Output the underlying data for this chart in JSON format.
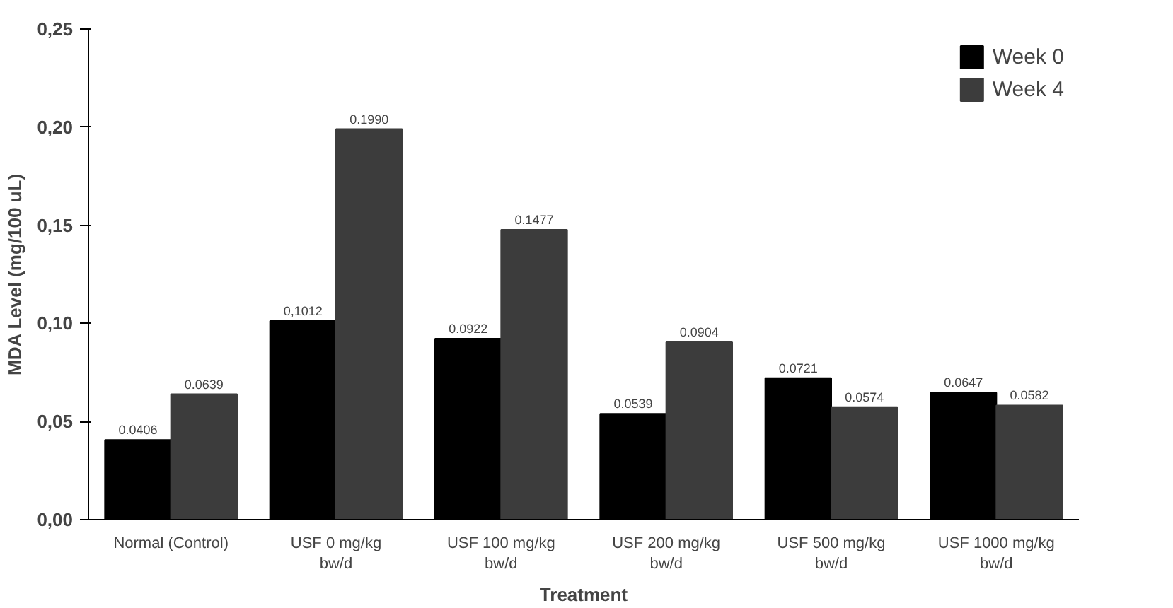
{
  "chart_data": {
    "type": "bar",
    "xlabel": "Treatment",
    "ylabel": "MDA Level (mg/100 uL)",
    "categories": [
      "Normal (Control)",
      "USF 0 mg/kg\nbw/d",
      "USF 100 mg/kg\nbw/d",
      "USF 200 mg/kg\nbw/d",
      "USF 500 mg/kg\nbw/d",
      "USF 1000 mg/kg\nbw/d"
    ],
    "series": [
      {
        "name": "Week 0",
        "color": "#000000",
        "values": [
          0.0406,
          0.1012,
          0.0922,
          0.0539,
          0.0721,
          0.0647
        ],
        "value_labels": [
          "0.0406",
          "0,1012",
          "0.0922",
          "0.0539",
          "0.0721",
          "0.0647"
        ]
      },
      {
        "name": "Week 4",
        "color": "#3c3c3c",
        "values": [
          0.0639,
          0.199,
          0.1477,
          0.0904,
          0.0574,
          0.0582
        ],
        "value_labels": [
          "0.0639",
          "0.1990",
          "0.1477",
          "0.0904",
          "0.0574",
          "0.0582"
        ]
      }
    ],
    "ylim": [
      0,
      0.25
    ],
    "yticks": [
      {
        "value": 0,
        "label": "0,00"
      },
      {
        "value": 0.05,
        "label": "0,05"
      },
      {
        "value": 0.1,
        "label": "0,10"
      },
      {
        "value": 0.15,
        "label": "0,15"
      },
      {
        "value": 0.2,
        "label": "0,20"
      },
      {
        "value": 0.25,
        "label": "0,25"
      }
    ],
    "grid": false,
    "legend": "top right"
  }
}
